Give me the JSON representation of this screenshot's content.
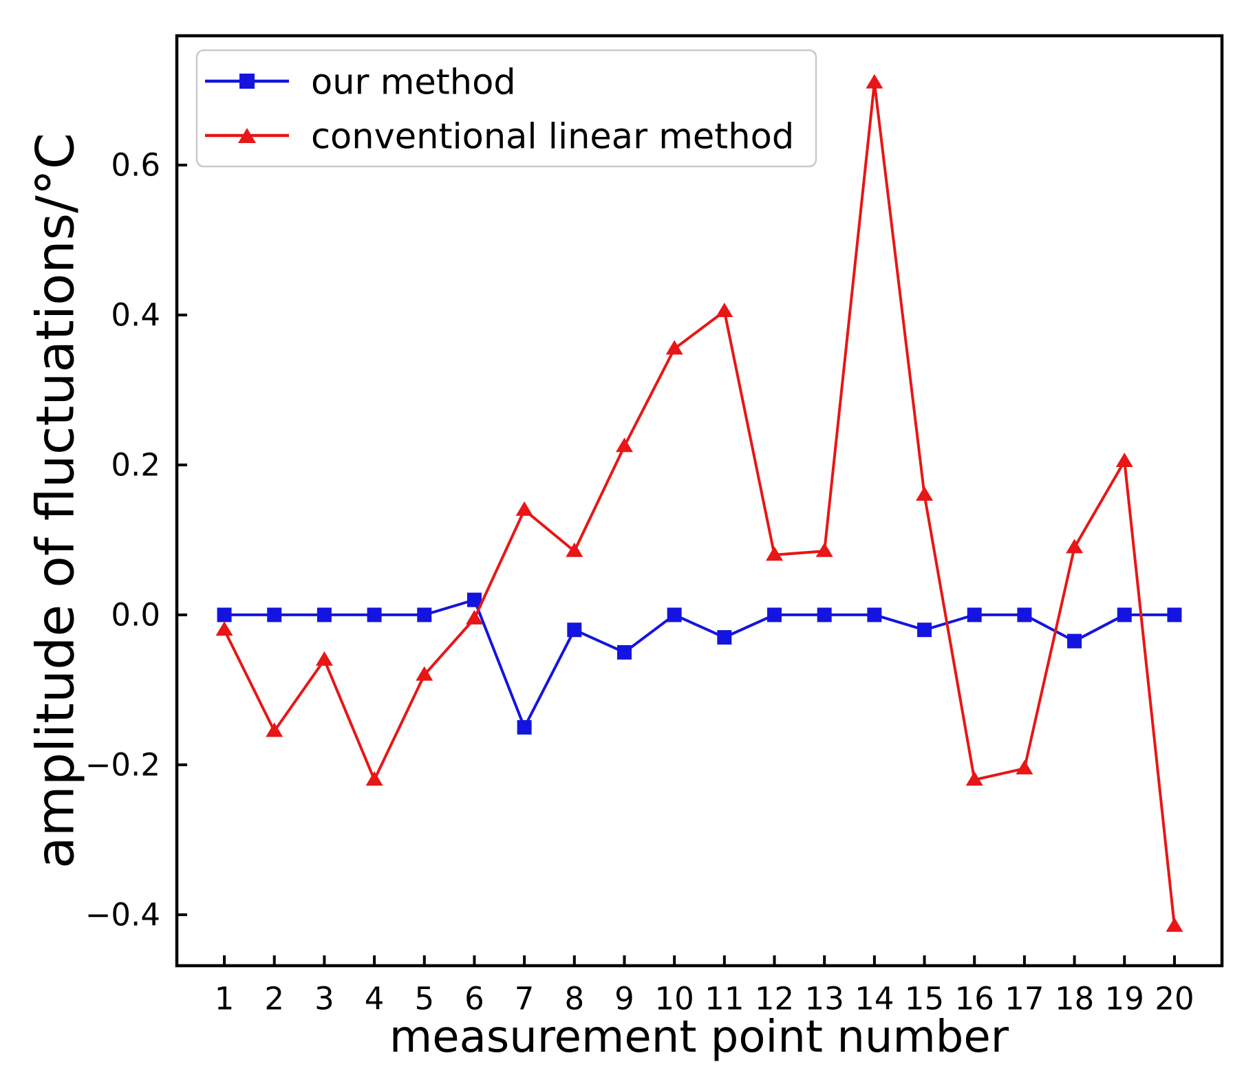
{
  "page": {
    "background": "#ffffff",
    "axis_color": "#000000",
    "legend_border_color": "#c9c9c9"
  },
  "chart_data": {
    "type": "line",
    "title": "",
    "xlabel": "measurement point number",
    "ylabel": "amplitude of fluctuations/°C",
    "x": [
      1,
      2,
      3,
      4,
      5,
      6,
      7,
      8,
      9,
      10,
      11,
      12,
      13,
      14,
      15,
      16,
      17,
      18,
      19,
      20
    ],
    "x_tick_labels": [
      "1",
      "2",
      "3",
      "4",
      "5",
      "6",
      "7",
      "8",
      "9",
      "10",
      "11",
      "12",
      "13",
      "14",
      "15",
      "16",
      "17",
      "18",
      "19",
      "20"
    ],
    "y_tick_values": [
      0.6,
      0.4,
      0.2,
      0.0,
      -0.2,
      -0.4
    ],
    "y_tick_labels": [
      "0.6",
      "0.4",
      "0.2",
      "0.0",
      "−0.2",
      "−0.4"
    ],
    "xlim": [
      0.05,
      20.95
    ],
    "ylim": [
      -0.468,
      0.7725
    ],
    "grid": false,
    "tick_direction": "in",
    "legend_position": "upper left",
    "series": [
      {
        "name": "our method",
        "color": "#1414e0",
        "marker": "square",
        "values": [
          0.0,
          0.0,
          0.0,
          0.0,
          0.0,
          0.02,
          -0.15,
          -0.02,
          -0.05,
          0.0,
          -0.03,
          0.0,
          0.0,
          0.0,
          -0.02,
          0.0,
          0.0,
          -0.035,
          0.0,
          0.0
        ]
      },
      {
        "name": "conventional linear method",
        "color": "#e81616",
        "marker": "triangle-up",
        "values": [
          -0.02,
          -0.155,
          -0.06,
          -0.22,
          -0.08,
          -0.005,
          0.14,
          0.085,
          0.225,
          0.355,
          0.405,
          0.08,
          0.085,
          0.71,
          0.16,
          -0.22,
          -0.205,
          0.09,
          0.205,
          -0.415
        ]
      }
    ]
  }
}
